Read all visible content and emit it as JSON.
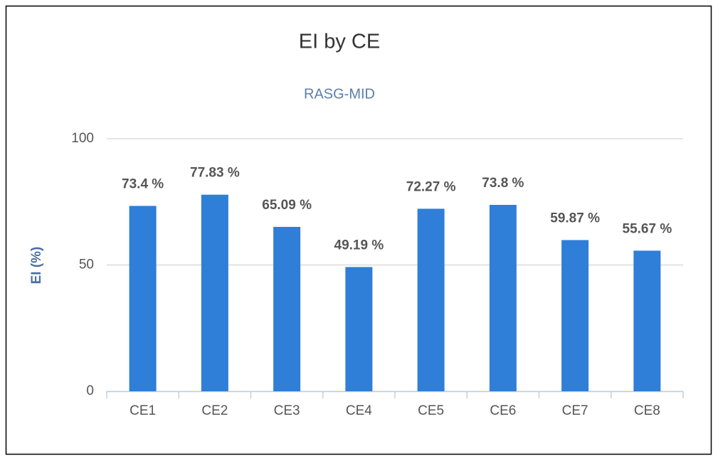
{
  "chart_data": {
    "type": "bar",
    "title": "EI by CE",
    "subtitle": "RASG-MID",
    "y_label": "EI (%)",
    "categories": [
      "CE1",
      "CE2",
      "CE3",
      "CE4",
      "CE5",
      "CE6",
      "CE7",
      "CE8"
    ],
    "values": [
      73.4,
      77.83,
      65.09,
      49.19,
      72.27,
      73.8,
      59.87,
      55.67
    ],
    "value_labels": [
      "73.4 %",
      "77.83 %",
      "65.09 %",
      "49.19 %",
      "72.27 %",
      "73.8 %",
      "59.87 %",
      "55.67 %"
    ],
    "color": "#2f7ed8",
    "ylim": [
      0,
      100
    ],
    "yticks": [
      0,
      50,
      100
    ],
    "grid": true
  }
}
